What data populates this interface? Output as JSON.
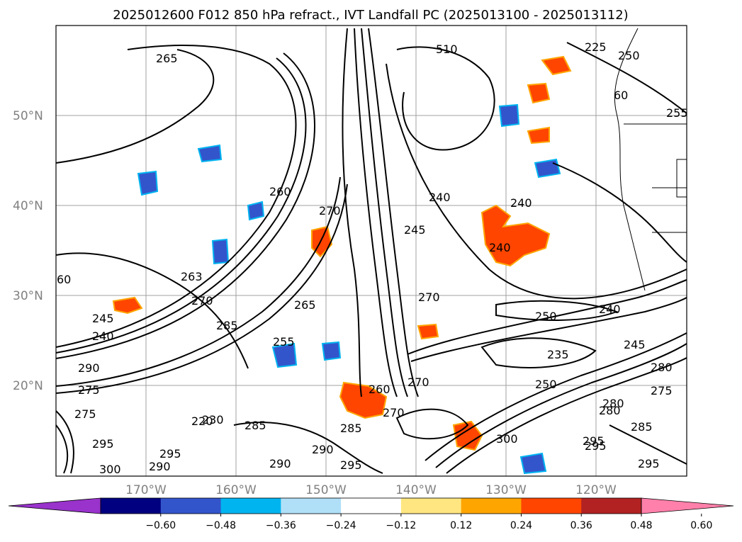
{
  "title": "2025012600 F012 850 hPa refract., IVT Landfall PC (2025013100 - 2025013112)",
  "axes": {
    "lat_ticks": [
      "50°N",
      "40°N",
      "30°N",
      "20°N"
    ],
    "lon_ticks": [
      "170°W",
      "160°W",
      "150°W",
      "140°W",
      "130°W",
      "120°W"
    ]
  },
  "contour_labels": [
    "265",
    "225",
    "250",
    "60",
    "255",
    "260",
    "270",
    "240",
    "245",
    "240",
    "240",
    "60",
    "263",
    "245",
    "240",
    "270",
    "285",
    "255",
    "250",
    "235",
    "240",
    "245",
    "280",
    "275",
    "290",
    "270",
    "275",
    "280",
    "300",
    "295",
    "285",
    "295",
    "300",
    "290",
    "295",
    "290",
    "285",
    "290",
    "280",
    "295",
    "275",
    "270",
    "250",
    "260",
    "230",
    "510",
    "270",
    "295",
    "295",
    "220",
    "285",
    "265"
  ],
  "colorbar": {
    "ticks": [
      "−0.60",
      "−0.48",
      "−0.36",
      "−0.24",
      "−0.12",
      "0.12",
      "0.24",
      "0.36",
      "0.48",
      "0.60"
    ],
    "colors": [
      "#9933cc",
      "#000080",
      "#3355cc",
      "#00b4f0",
      "#b0e0f8",
      "#ffffff",
      "#ffe680",
      "#ffa500",
      "#ff4500",
      "#b22222",
      "#ff80aa"
    ],
    "extend": "both"
  },
  "colors": {
    "contour": "#000000",
    "grid": "#a0a0a0",
    "positive_fill": "#ff4500",
    "negative_fill": "#3355cc"
  }
}
